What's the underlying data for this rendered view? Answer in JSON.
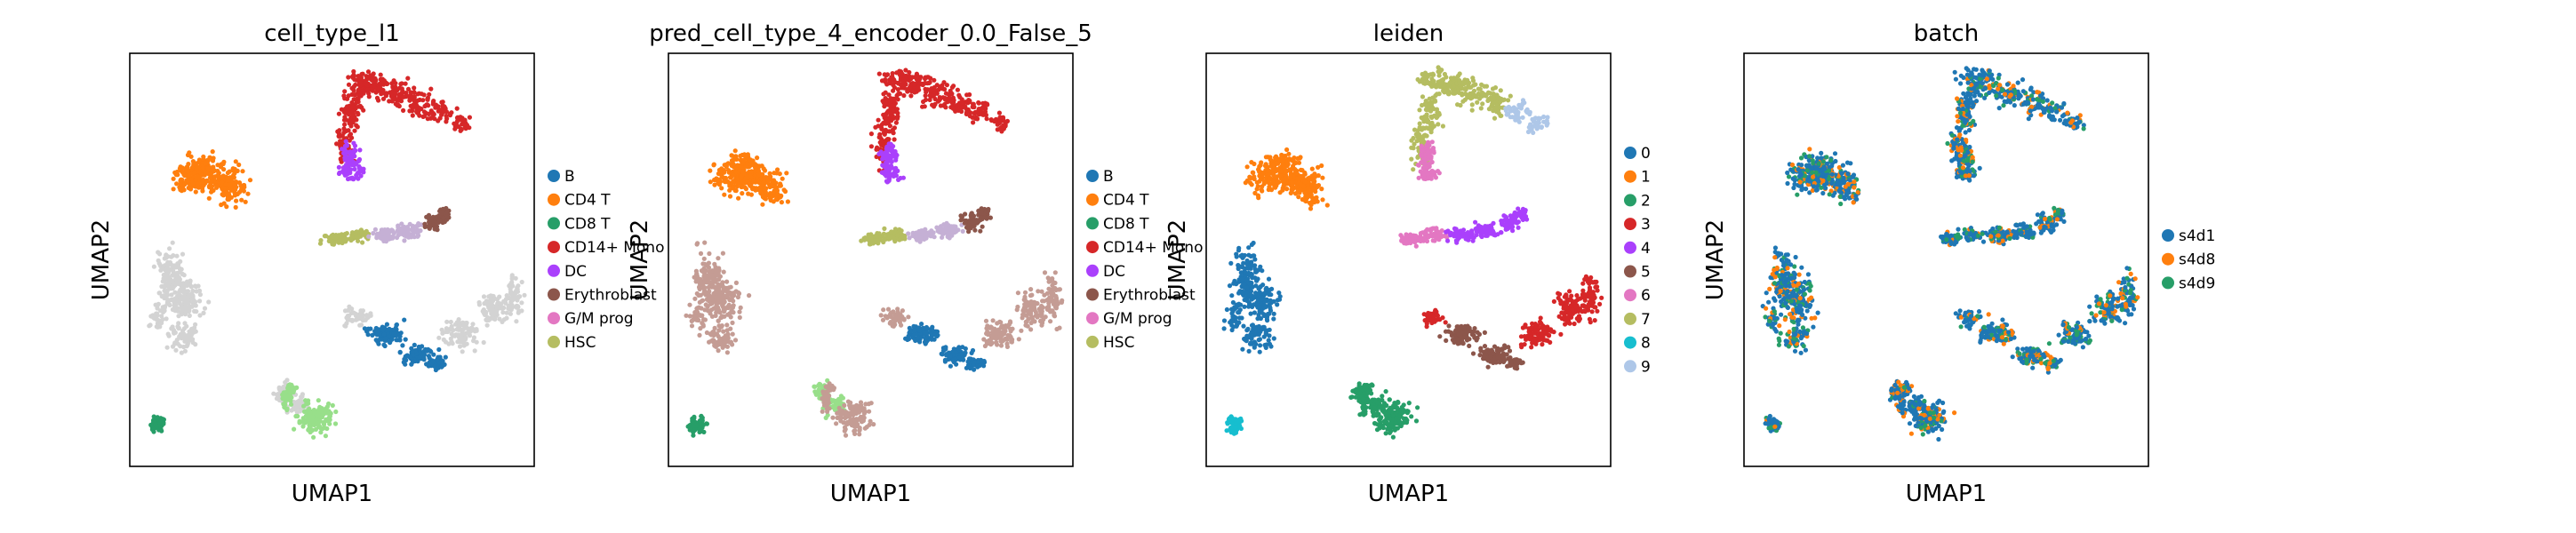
{
  "figure": {
    "panels": [
      {
        "title": "cell_type_l1",
        "xlabel": "UMAP1",
        "ylabel": "UMAP2",
        "legend": [
          "B",
          "CD4 T",
          "CD8 T",
          "CD14+ Mono",
          "DC",
          "Erythroblast",
          "G/M prog",
          "HSC"
        ]
      },
      {
        "title": "pred_cell_type_4_encoder_0.0_False_5",
        "xlabel": "UMAP1",
        "ylabel": "UMAP2",
        "legend": [
          "B",
          "CD4 T",
          "CD8 T",
          "CD14+ Mono",
          "DC",
          "Erythroblast",
          "G/M prog",
          "HSC"
        ]
      },
      {
        "title": "leiden",
        "xlabel": "UMAP1",
        "ylabel": "UMAP2",
        "legend": [
          "0",
          "1",
          "2",
          "3",
          "4",
          "5",
          "6",
          "7",
          "8",
          "9"
        ]
      },
      {
        "title": "batch",
        "xlabel": "UMAP1",
        "ylabel": "UMAP2",
        "legend": [
          "s4d1",
          "s4d8",
          "s4d9"
        ]
      }
    ]
  },
  "chart_data": [
    {
      "type": "scatter",
      "title": "cell_type_l1",
      "xlabel": "UMAP1",
      "ylabel": "UMAP2",
      "grid": false,
      "legend_position": "right",
      "categories": [
        "B",
        "CD4 T",
        "CD8 T",
        "CD14+ Mono",
        "DC",
        "Erythroblast",
        "G/M prog",
        "HSC"
      ],
      "colors": [
        "#1f77b4",
        "#ff7f0e",
        "#279e68",
        "#d62728",
        "#aa40fc",
        "#8c564b",
        "#e377c2",
        "#b5bd61"
      ],
      "other_colors": [
        "#d3d3d3",
        "#aec7e8",
        "#98df8a"
      ]
    },
    {
      "type": "scatter",
      "title": "pred_cell_type_4_encoder_0.0_False_5",
      "xlabel": "UMAP1",
      "ylabel": "UMAP2",
      "grid": false,
      "legend_position": "right",
      "categories": [
        "B",
        "CD4 T",
        "CD8 T",
        "CD14+ Mono",
        "DC",
        "Erythroblast",
        "G/M prog",
        "HSC"
      ],
      "colors": [
        "#1f77b4",
        "#ff7f0e",
        "#279e68",
        "#d62728",
        "#aa40fc",
        "#8c564b",
        "#e377c2",
        "#b5bd61"
      ],
      "other_colors": [
        "#c49c94",
        "#aec7e8",
        "#98df8a"
      ]
    },
    {
      "type": "scatter",
      "title": "leiden",
      "xlabel": "UMAP1",
      "ylabel": "UMAP2",
      "grid": false,
      "legend_position": "right",
      "categories": [
        "0",
        "1",
        "2",
        "3",
        "4",
        "5",
        "6",
        "7",
        "8",
        "9"
      ],
      "colors": [
        "#1f77b4",
        "#ff7f0e",
        "#279e68",
        "#d62728",
        "#aa40fc",
        "#8c564b",
        "#e377c2",
        "#b5bd61",
        "#17becf",
        "#aec7e8"
      ]
    },
    {
      "type": "scatter",
      "title": "batch",
      "xlabel": "UMAP1",
      "ylabel": "UMAP2",
      "grid": false,
      "legend_position": "right",
      "categories": [
        "s4d1",
        "s4d8",
        "s4d9"
      ],
      "colors": [
        "#1f77b4",
        "#ff7f0e",
        "#279e68"
      ]
    }
  ]
}
